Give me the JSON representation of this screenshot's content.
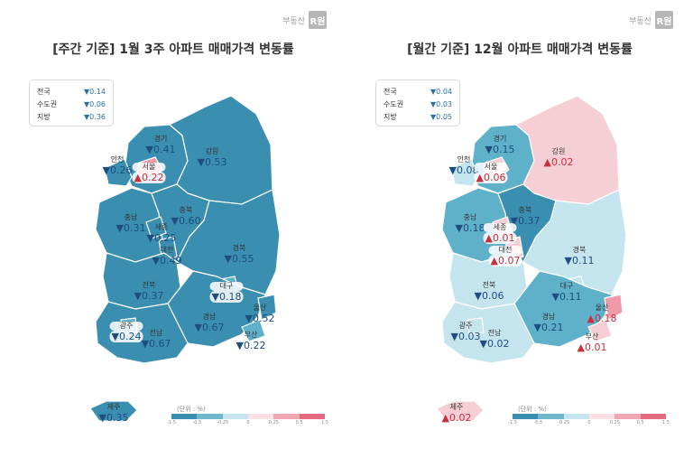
{
  "brand": {
    "text": "부동산",
    "badge": "R원"
  },
  "colors": {
    "down_strong": "#3a8fb0",
    "down_mid": "#5eb1c8",
    "down_light": "#c4e4ee",
    "up_light": "#f6cfd6",
    "up_mid": "#ef9aa9",
    "up_strong": "#e36a80",
    "stroke": "#ffffff"
  },
  "legend": {
    "unit": "(단위 : %)",
    "ticks": [
      "-1.5",
      "-0.5",
      "-0.25",
      "0",
      "0.25",
      "0.5",
      "1.5"
    ],
    "colors": [
      "#3a8fb0",
      "#6fb8cc",
      "#c4e4ee",
      "#fbe1e6",
      "#f2a5b3",
      "#e36a80"
    ]
  },
  "weekly": {
    "title": "[주간 기준] 1월 3주 아파트 매매가격 변동률",
    "summary": [
      {
        "label": "전국",
        "value": "▼0.14"
      },
      {
        "label": "수도권",
        "value": "▼0.06"
      },
      {
        "label": "지방",
        "value": "▼0.36"
      }
    ],
    "regions": {
      "gangwon": {
        "name": "강원",
        "value": "▼0.53",
        "dir": "down"
      },
      "gyeonggi": {
        "name": "경기",
        "value": "▼0.41",
        "dir": "down"
      },
      "incheon": {
        "name": "인천",
        "value": "▼0.26",
        "dir": "down"
      },
      "seoul": {
        "name": "서울",
        "value": "▲0.22",
        "dir": "up"
      },
      "chungbuk": {
        "name": "충북",
        "value": "▼0.60",
        "dir": "down"
      },
      "chungnam": {
        "name": "충남",
        "value": "▼0.31",
        "dir": "down"
      },
      "sejong": {
        "name": "세종",
        "value": "▼0.25",
        "dir": "down"
      },
      "daejeon": {
        "name": "대전",
        "value": "▼0.49",
        "dir": "down"
      },
      "gyeongbuk": {
        "name": "경북",
        "value": "▼0.55",
        "dir": "down"
      },
      "jeonbuk": {
        "name": "전북",
        "value": "▼0.37",
        "dir": "down"
      },
      "daegu": {
        "name": "대구",
        "value": "▼0.18",
        "dir": "down"
      },
      "ulsan": {
        "name": "울산",
        "value": "▼0.52",
        "dir": "down"
      },
      "gwangju": {
        "name": "광주",
        "value": "▼0.24",
        "dir": "down"
      },
      "jeonnam": {
        "name": "전남",
        "value": "▼0.67",
        "dir": "down"
      },
      "gyeongnam": {
        "name": "경남",
        "value": "▼0.67",
        "dir": "down"
      },
      "busan": {
        "name": "부산",
        "value": "▼0.22",
        "dir": "down"
      },
      "jeju": {
        "name": "제주",
        "value": "▼0.35",
        "dir": "down"
      }
    }
  },
  "monthly": {
    "title": "[월간 기준] 12월 아파트 매매가격 변동률",
    "summary": [
      {
        "label": "전국",
        "value": "▼0.04"
      },
      {
        "label": "수도권",
        "value": "▼0.03"
      },
      {
        "label": "지방",
        "value": "▼0.05"
      }
    ],
    "regions": {
      "gangwon": {
        "name": "강원",
        "value": "▲0.02",
        "dir": "up"
      },
      "gyeonggi": {
        "name": "경기",
        "value": "▼0.15",
        "dir": "down"
      },
      "incheon": {
        "name": "인천",
        "value": "▼0.08",
        "dir": "down"
      },
      "seoul": {
        "name": "서울",
        "value": "▲0.06",
        "dir": "up"
      },
      "chungbuk": {
        "name": "충북",
        "value": "▼0.37",
        "dir": "down"
      },
      "chungnam": {
        "name": "충남",
        "value": "▼0.18",
        "dir": "down"
      },
      "sejong": {
        "name": "세종",
        "value": "▲0.01",
        "dir": "up"
      },
      "daejeon": {
        "name": "대전",
        "value": "▲0.07",
        "dir": "up"
      },
      "gyeongbuk": {
        "name": "경북",
        "value": "▼0.11",
        "dir": "down"
      },
      "jeonbuk": {
        "name": "전북",
        "value": "▼0.06",
        "dir": "down"
      },
      "daegu": {
        "name": "대구",
        "value": "▼0.11",
        "dir": "down"
      },
      "ulsan": {
        "name": "울산",
        "value": "▲0.18",
        "dir": "up"
      },
      "gwangju": {
        "name": "광주",
        "value": "▼0.03",
        "dir": "down"
      },
      "jeonnam": {
        "name": "전남",
        "value": "▼0.02",
        "dir": "down"
      },
      "gyeongnam": {
        "name": "경남",
        "value": "▼0.21",
        "dir": "down"
      },
      "busan": {
        "name": "부산",
        "value": "▲0.01",
        "dir": "up"
      },
      "jeju": {
        "name": "제주",
        "value": "▲0.02",
        "dir": "up"
      }
    }
  }
}
